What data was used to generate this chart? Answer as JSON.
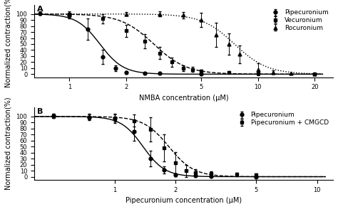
{
  "panel_A": {
    "title": "A",
    "xlabel": "NMBA concentration (μM)",
    "ylabel": "Normalized contraction(%)",
    "xlim_log": [
      0.65,
      25
    ],
    "ylim": [
      -5,
      115
    ],
    "yticks": [
      0,
      10,
      20,
      30,
      40,
      50,
      60,
      70,
      80,
      90,
      100
    ],
    "xticks": [
      1,
      2,
      5,
      10,
      20
    ],
    "pipecuronium": {
      "x": [
        0.7,
        1.0,
        1.25,
        1.5,
        1.75,
        2.0,
        2.5,
        3.0,
        5.0
      ],
      "y": [
        101,
        97,
        75,
        29,
        10,
        3,
        2,
        1,
        0
      ],
      "yerr": [
        3,
        5,
        18,
        12,
        5,
        2,
        1,
        0,
        0
      ],
      "ec50": 1.45,
      "hill": 7,
      "color": "black",
      "linestyle": "-",
      "marker": "o",
      "label": "Pipecuronium"
    },
    "vecuronium": {
      "x": [
        1.0,
        1.5,
        2.0,
        2.5,
        3.0,
        3.5,
        4.0,
        4.5,
        5.0,
        7.0,
        10.0,
        20.0
      ],
      "y": [
        100,
        92,
        72,
        55,
        35,
        20,
        10,
        8,
        5,
        3,
        1,
        0
      ],
      "yerr": [
        4,
        8,
        10,
        12,
        10,
        8,
        5,
        4,
        3,
        2,
        1,
        0
      ],
      "ec50": 2.8,
      "hill": 5,
      "color": "black",
      "linestyle": "--",
      "marker": "s",
      "label": "Vecuronium"
    },
    "rocuronium": {
      "x": [
        2.0,
        3.0,
        4.0,
        5.0,
        6.0,
        7.0,
        8.0,
        10.0,
        12.0,
        15.0,
        20.0
      ],
      "y": [
        100,
        100,
        98,
        90,
        65,
        50,
        33,
        8,
        3,
        1,
        0
      ],
      "yerr": [
        3,
        4,
        5,
        12,
        20,
        18,
        15,
        10,
        3,
        1,
        0
      ],
      "ec50": 7.5,
      "hill": 5,
      "color": "black",
      "linestyle": ":",
      "marker": "^",
      "label": "Rocuronium"
    }
  },
  "panel_B": {
    "title": "B",
    "xlabel": "Pipecuronium concentration (μM)",
    "ylabel": "Normalized contraction(%)",
    "xlim_log": [
      0.4,
      12
    ],
    "ylim": [
      -5,
      115
    ],
    "yticks": [
      0,
      10,
      20,
      30,
      40,
      50,
      60,
      70,
      80,
      90,
      100
    ],
    "xticks": [
      1,
      2,
      5,
      10
    ],
    "pipecuronium": {
      "x": [
        0.5,
        0.75,
        1.0,
        1.25,
        1.5,
        1.75,
        2.0,
        2.5,
        3.0,
        5.0
      ],
      "y": [
        101,
        99,
        98,
        75,
        30,
        11,
        3,
        2,
        1,
        0
      ],
      "yerr": [
        3,
        4,
        6,
        15,
        13,
        6,
        2,
        1,
        0,
        0
      ],
      "ec50": 1.38,
      "hill": 8,
      "color": "black",
      "linestyle": "-",
      "marker": "o",
      "label": "Pipecuronium"
    },
    "pipecuronium_cmgcd": {
      "x": [
        0.5,
        0.75,
        1.0,
        1.25,
        1.5,
        1.75,
        2.0,
        2.25,
        2.5,
        3.0,
        4.0,
        5.0
      ],
      "y": [
        101,
        99,
        96,
        93,
        79,
        48,
        23,
        10,
        7,
        5,
        4,
        3
      ],
      "yerr": [
        3,
        5,
        7,
        10,
        20,
        22,
        18,
        10,
        6,
        4,
        3,
        2
      ],
      "ec50": 1.85,
      "hill": 7,
      "color": "black",
      "linestyle": "--",
      "marker": "s",
      "label": "Pipecuronium + CMGCD"
    }
  },
  "figure_bg": "#ffffff",
  "axes_bg": "#ffffff",
  "font_size": 7,
  "label_font_size": 7,
  "tick_font_size": 6,
  "curve_fit_range_A": [
    0.65,
    22
  ],
  "curve_fit_range_B": [
    0.38,
    11
  ]
}
